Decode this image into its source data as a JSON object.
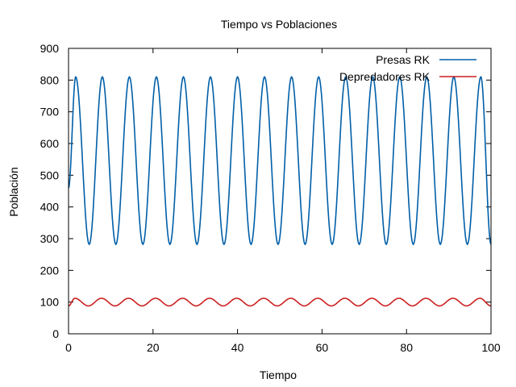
{
  "chart_data": {
    "type": "line",
    "title": "Tiempo vs Poblaciones",
    "xlabel": "Tiempo",
    "ylabel": "Población",
    "xlim": [
      0,
      100
    ],
    "ylim": [
      0,
      900
    ],
    "xticks": [
      0,
      20,
      40,
      60,
      80,
      100
    ],
    "yticks": [
      0,
      100,
      200,
      300,
      400,
      500,
      600,
      700,
      800,
      900
    ],
    "xtick_labels": [
      "0",
      "20",
      "40",
      "60",
      "80",
      "100"
    ],
    "ytick_labels": [
      "0",
      "100",
      "200",
      "300",
      "400",
      "500",
      "600",
      "700",
      "800",
      "900"
    ],
    "grid": false,
    "legend_position": "top-right",
    "series": [
      {
        "name": "Presas RK",
        "color": "#005fa8",
        "x": [
          0,
          1.7,
          4.9,
          8.0,
          11.2,
          14.4,
          17.6,
          20.8,
          24.0,
          27.2,
          30.4,
          33.6,
          36.8,
          40.0,
          43.2,
          46.4,
          49.6,
          52.8,
          56.0,
          59.2,
          62.4,
          65.6,
          68.8,
          72.0,
          75.2,
          78.4,
          81.6,
          84.8,
          88.0,
          91.2,
          94.4,
          97.6,
          100
        ],
        "values": [
          460,
          810,
          282,
          810,
          282,
          810,
          282,
          810,
          282,
          810,
          282,
          810,
          282,
          810,
          282,
          810,
          282,
          810,
          282,
          810,
          282,
          810,
          282,
          810,
          282,
          810,
          282,
          810,
          282,
          810,
          282,
          810,
          282
        ]
      },
      {
        "name": "Depredadores RK",
        "color": "#cc1f1f",
        "x": [
          0,
          1.5,
          4.7,
          7.8,
          11.0,
          14.2,
          17.4,
          20.6,
          23.8,
          27.0,
          30.2,
          33.4,
          36.6,
          39.8,
          43.0,
          46.2,
          49.4,
          52.6,
          55.8,
          59.0,
          62.2,
          65.4,
          68.6,
          71.8,
          75.0,
          78.2,
          81.4,
          84.6,
          87.8,
          91.0,
          94.2,
          97.4,
          100
        ],
        "values": [
          88,
          112,
          88,
          112,
          88,
          112,
          88,
          112,
          88,
          112,
          88,
          112,
          88,
          112,
          88,
          112,
          88,
          112,
          88,
          112,
          88,
          112,
          88,
          112,
          88,
          112,
          88,
          112,
          88,
          112,
          88,
          112,
          88
        ]
      }
    ]
  }
}
